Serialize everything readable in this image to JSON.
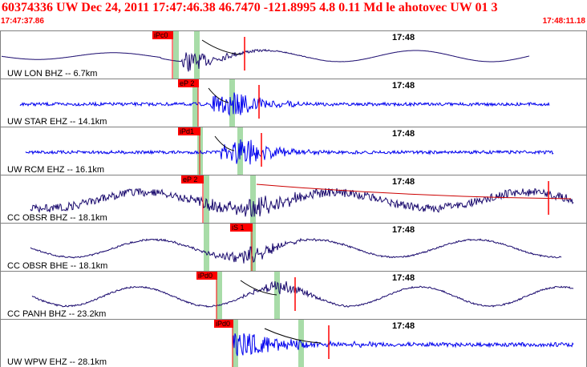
{
  "header": {
    "title": "60374336 UW Dec 24, 2011 17:47:46.38    46.7470 -121.8995  4.8 0.11 Md le ahotovec UW 01   3",
    "start_time": "17:47:37.86",
    "end_time": "17:48:11.18"
  },
  "colors": {
    "header_text": "#ff0000",
    "frame": "#808080",
    "pick_flag": "#ff0000",
    "window_band": "#a8dca8",
    "trace_blue": "#0000ee",
    "trace_navy": "#1a0a6e",
    "fit_line": "#cc0000"
  },
  "panels": [
    {
      "label": "UW LON BHZ -- 6.7km",
      "time_mark": "17:48",
      "pick": "iPc0",
      "color": "navy"
    },
    {
      "label": "UW STAR EHZ -- 14.1km",
      "time_mark": "17:48",
      "pick": "eP 2",
      "color": "blue"
    },
    {
      "label": "UW RCM EHZ -- 16.1km",
      "time_mark": "17:48",
      "pick": "iPd1",
      "color": "blue"
    },
    {
      "label": "CC OBSR BHZ -- 18.1km",
      "time_mark": "17:48",
      "pick": "eP 2",
      "color": "navy"
    },
    {
      "label": "CC OBSR BHE -- 18.1km",
      "time_mark": "17:48",
      "pick": "iS 1",
      "color": "navy"
    },
    {
      "label": "CC PANH BHZ -- 23.2km",
      "time_mark": "17:48",
      "pick": "iPd0",
      "color": "navy"
    },
    {
      "label": "UW WPW EHZ -- 28.1km",
      "time_mark": "17:48",
      "pick": "iPd0",
      "color": "blue"
    }
  ]
}
